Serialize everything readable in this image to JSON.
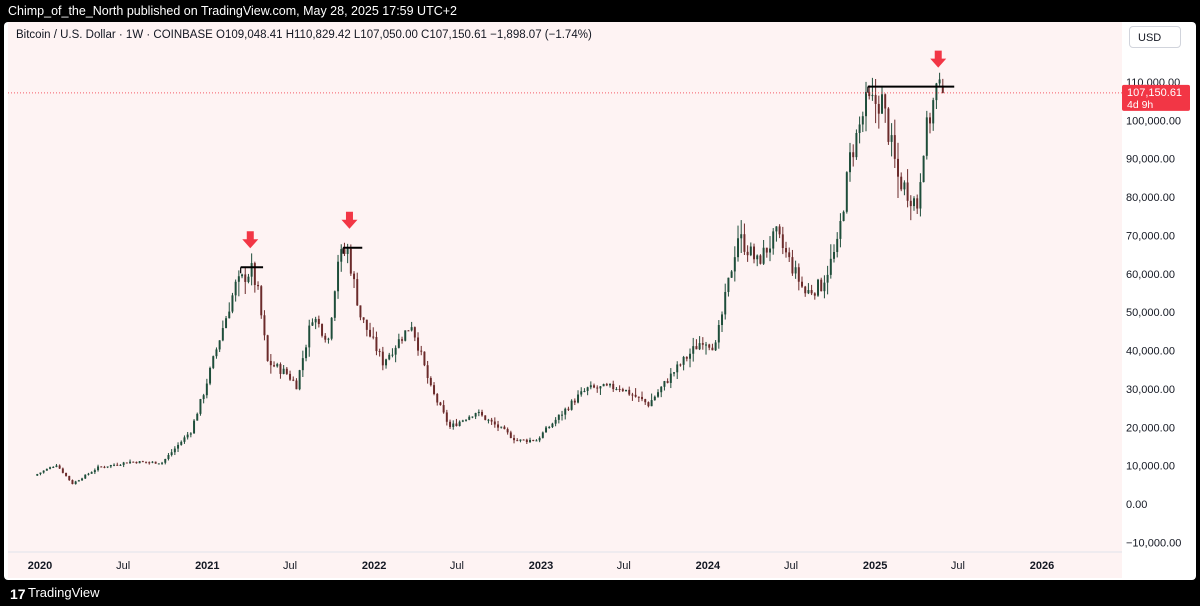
{
  "header": {
    "publisher_line": "Chimp_of_the_North published on TradingView.com, May 28, 2025 17:59 UTC+2"
  },
  "symbol": {
    "title": "Bitcoin / U.S. Dollar · 1W · COINBASE  O109,048.41  H110,829.42  L107,050.00  C107,150.61  −1,898.07 (−1.74%)"
  },
  "currency_button": "USD",
  "price_tag": {
    "price": "107,150.61",
    "countdown": "4d 9h",
    "color": "#f23645"
  },
  "footer": {
    "brand": "TradingView",
    "logo": "17"
  },
  "colors": {
    "up": "#1e4d3a",
    "down": "#6b2a2a",
    "accent": "#f23645",
    "background": "#fef3f3"
  },
  "chart_data": {
    "type": "candlestick",
    "title": "Bitcoin / U.S. Dollar · 1W · COINBASE",
    "ylim": [
      -15000,
      118000
    ],
    "y_ticks": [
      110000,
      100000,
      90000,
      80000,
      70000,
      60000,
      50000,
      40000,
      30000,
      20000,
      10000,
      0,
      -10000
    ],
    "y_tick_labels": [
      "110,000.00",
      "100,000.00",
      "90,000.00",
      "80,000.00",
      "70,000.00",
      "60,000.00",
      "50,000.00",
      "40,000.00",
      "30,000.00",
      "20,000.00",
      "10,000.00",
      "0.00",
      "−10,000.00"
    ],
    "x_tick_labels": [
      {
        "date": "2020-01-01",
        "label": "2020",
        "bold": true
      },
      {
        "date": "2020-07-01",
        "label": "Jul",
        "bold": false
      },
      {
        "date": "2021-01-01",
        "label": "2021",
        "bold": true
      },
      {
        "date": "2021-07-01",
        "label": "Jul",
        "bold": false
      },
      {
        "date": "2022-01-01",
        "label": "2022",
        "bold": true
      },
      {
        "date": "2022-07-01",
        "label": "Jul",
        "bold": false
      },
      {
        "date": "2023-01-01",
        "label": "2023",
        "bold": true
      },
      {
        "date": "2023-07-01",
        "label": "Jul",
        "bold": false
      },
      {
        "date": "2024-01-01",
        "label": "2024",
        "bold": true
      },
      {
        "date": "2024-07-01",
        "label": "Jul",
        "bold": false
      },
      {
        "date": "2025-01-01",
        "label": "2025",
        "bold": true
      },
      {
        "date": "2025-07-01",
        "label": "Jul",
        "bold": false
      },
      {
        "date": "2026-01-01",
        "label": "2026",
        "bold": true
      }
    ],
    "price_path": [
      [
        "2019-12-23",
        7400
      ],
      [
        "2020-02-10",
        10300
      ],
      [
        "2020-03-16",
        5300
      ],
      [
        "2020-05-11",
        9500
      ],
      [
        "2020-07-20",
        11000
      ],
      [
        "2020-09-28",
        10800
      ],
      [
        "2020-11-30",
        19000
      ],
      [
        "2020-12-28",
        29000
      ],
      [
        "2021-02-08",
        46000
      ],
      [
        "2021-03-08",
        57000
      ],
      [
        "2021-04-12",
        61000
      ],
      [
        "2021-04-26",
        55000
      ],
      [
        "2021-05-17",
        37000
      ],
      [
        "2021-06-28",
        34000
      ],
      [
        "2021-07-19",
        31000
      ],
      [
        "2021-08-23",
        49000
      ],
      [
        "2021-09-27",
        43000
      ],
      [
        "2021-10-18",
        64000
      ],
      [
        "2021-11-08",
        66000
      ],
      [
        "2021-12-06",
        49000
      ],
      [
        "2022-01-24",
        37000
      ],
      [
        "2022-03-28",
        47000
      ],
      [
        "2022-05-09",
        30000
      ],
      [
        "2022-06-20",
        20000
      ],
      [
        "2022-08-15",
        24000
      ],
      [
        "2022-10-10",
        19500
      ],
      [
        "2022-11-14",
        16500
      ],
      [
        "2022-12-26",
        16700
      ],
      [
        "2023-03-27",
        28000
      ],
      [
        "2023-04-17",
        30000
      ],
      [
        "2023-06-26",
        30500
      ],
      [
        "2023-08-28",
        26000
      ],
      [
        "2023-10-23",
        34500
      ],
      [
        "2023-12-25",
        43000
      ],
      [
        "2024-01-22",
        41000
      ],
      [
        "2024-03-11",
        70000
      ],
      [
        "2024-04-22",
        63000
      ],
      [
        "2024-06-03",
        70000
      ],
      [
        "2024-08-05",
        55000
      ],
      [
        "2024-09-09",
        57000
      ],
      [
        "2024-10-14",
        67000
      ],
      [
        "2024-11-11",
        90000
      ],
      [
        "2024-12-16",
        104000
      ],
      [
        "2025-01-20",
        105000
      ],
      [
        "2025-02-24",
        85000
      ],
      [
        "2025-04-07",
        78000
      ],
      [
        "2025-04-21",
        94000
      ],
      [
        "2025-05-19",
        108000
      ],
      [
        "2025-05-26",
        107150.61
      ]
    ],
    "last_candle": {
      "date": "2025-05-26",
      "open": 109048.41,
      "high": 110829.42,
      "low": 107050.0,
      "close": 107150.61,
      "change": -1898.07,
      "change_pct": -1.74
    },
    "resistance_lines": [
      {
        "from": "2021-03-15",
        "to": "2021-05-03",
        "value": 61700
      },
      {
        "from": "2021-10-25",
        "to": "2021-12-06",
        "value": 66800
      },
      {
        "from": "2024-12-16",
        "to": "2025-06-23",
        "value": 108800
      }
    ],
    "arrows": [
      {
        "date": "2021-04-05",
        "value": 61700
      },
      {
        "date": "2021-11-08",
        "value": 66800
      },
      {
        "date": "2025-05-19",
        "value": 108800
      }
    ]
  }
}
